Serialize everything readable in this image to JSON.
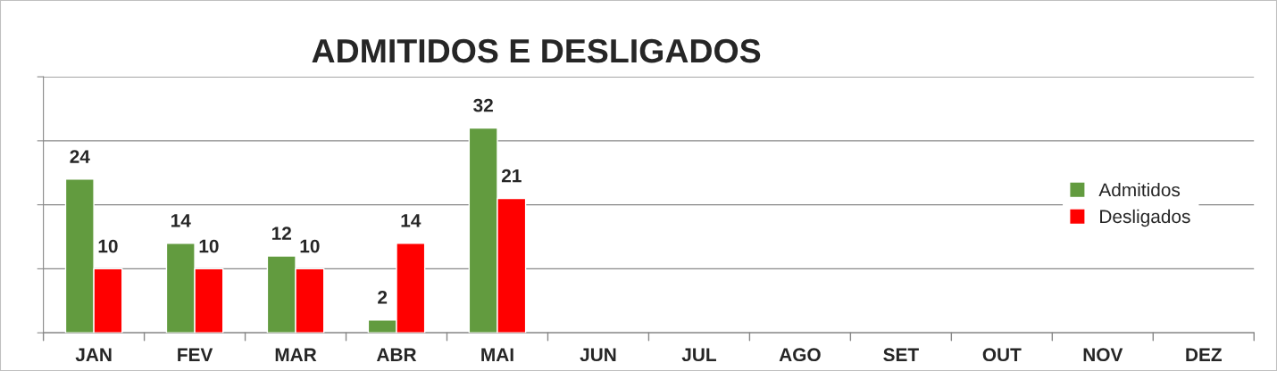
{
  "chart_data": {
    "type": "bar",
    "title": "ADMITIDOS E DESLIGADOS",
    "categories": [
      "JAN",
      "FEV",
      "MAR",
      "ABR",
      "MAI",
      "JUN",
      "JUL",
      "AGO",
      "SET",
      "OUT",
      "NOV",
      "DEZ"
    ],
    "series": [
      {
        "name": "Admitidos",
        "color": "#629b3f",
        "values": [
          24,
          14,
          12,
          2,
          32,
          null,
          null,
          null,
          null,
          null,
          null,
          null
        ]
      },
      {
        "name": "Desligados",
        "color": "#ff0000",
        "values": [
          10,
          10,
          10,
          14,
          21,
          null,
          null,
          null,
          null,
          null,
          null,
          null
        ]
      }
    ],
    "ylim": [
      0,
      40
    ],
    "yticks": [
      {
        "value": 0,
        "label": null
      },
      {
        "value": 10,
        "label": null
      },
      {
        "value": 20,
        "label": null
      },
      {
        "value": 30,
        "label": null
      },
      {
        "value": 40,
        "label": null
      }
    ],
    "tick_labels": "x",
    "grid": "y",
    "legend": "right",
    "data_labels": true
  }
}
